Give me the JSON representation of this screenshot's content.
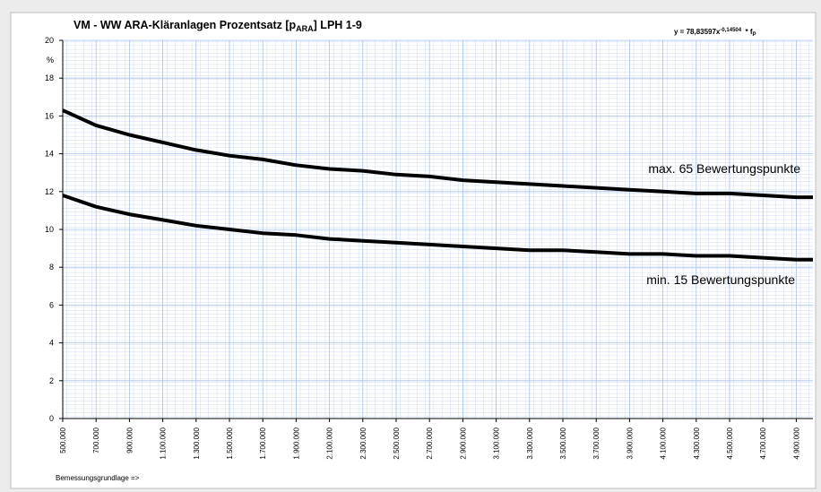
{
  "chart_data": {
    "type": "line",
    "title": [
      "VM - WW ARA-Kläranlagen Prozentsatz [p",
      "ARA",
      "] LPH 1-9"
    ],
    "formula": [
      "y = 78,83597x",
      "-0,14504",
      "  * f",
      "P"
    ],
    "y_unit": "%",
    "x_label": "Bemessungsgrundlage =>",
    "x": [
      500000,
      700000,
      900000,
      1100000,
      1300000,
      1500000,
      1700000,
      1900000,
      2100000,
      2300000,
      2500000,
      2700000,
      2900000,
      3100000,
      3300000,
      3500000,
      3700000,
      3900000,
      4100000,
      4300000,
      4500000,
      4700000,
      4900000,
      5000000
    ],
    "series": [
      {
        "name": "max. 65 Bewertungspunkte",
        "color": "#000000",
        "values": [
          16.3,
          15.5,
          15.0,
          14.6,
          14.2,
          13.9,
          13.7,
          13.4,
          13.2,
          13.1,
          12.9,
          12.8,
          12.6,
          12.5,
          12.4,
          12.3,
          12.2,
          12.1,
          12.0,
          11.9,
          11.9,
          11.8,
          11.7,
          11.7
        ]
      },
      {
        "name": "min. 15 Bewertungspunkte",
        "color": "#000000",
        "values": [
          11.8,
          11.2,
          10.8,
          10.5,
          10.2,
          10.0,
          9.8,
          9.7,
          9.5,
          9.4,
          9.3,
          9.2,
          9.1,
          9.0,
          8.9,
          8.9,
          8.8,
          8.7,
          8.7,
          8.6,
          8.6,
          8.5,
          8.4,
          8.4
        ]
      }
    ],
    "xlim": [
      500000,
      5000000
    ],
    "xticks": [
      {
        "value": 500000,
        "label": "500.000"
      },
      {
        "value": 700000,
        "label": "700.000"
      },
      {
        "value": 900000,
        "label": "900.000"
      },
      {
        "value": 1100000,
        "label": "1.100.000"
      },
      {
        "value": 1300000,
        "label": "1.300.000"
      },
      {
        "value": 1500000,
        "label": "1.500.000"
      },
      {
        "value": 1700000,
        "label": "1.700.000"
      },
      {
        "value": 1900000,
        "label": "1.900.000"
      },
      {
        "value": 2100000,
        "label": "2.100.000"
      },
      {
        "value": 2300000,
        "label": "2.300.000"
      },
      {
        "value": 2500000,
        "label": "2.500.000"
      },
      {
        "value": 2700000,
        "label": "2.700.000"
      },
      {
        "value": 2900000,
        "label": "2.900.000"
      },
      {
        "value": 3100000,
        "label": "3.100.000"
      },
      {
        "value": 3300000,
        "label": "3.300.000"
      },
      {
        "value": 3500000,
        "label": "3.500.000"
      },
      {
        "value": 3700000,
        "label": "3.700.000"
      },
      {
        "value": 3900000,
        "label": "3.900.000"
      },
      {
        "value": 4100000,
        "label": "4.100.000"
      },
      {
        "value": 4300000,
        "label": "4.300.000"
      },
      {
        "value": 4500000,
        "label": "4.500.000"
      },
      {
        "value": 4700000,
        "label": "4.700.000"
      },
      {
        "value": 4900000,
        "label": "4.900.000"
      }
    ],
    "ylim": [
      0,
      20
    ],
    "yticks": [
      0,
      2,
      4,
      6,
      8,
      10,
      12,
      14,
      16,
      18,
      20
    ],
    "grid": true
  }
}
